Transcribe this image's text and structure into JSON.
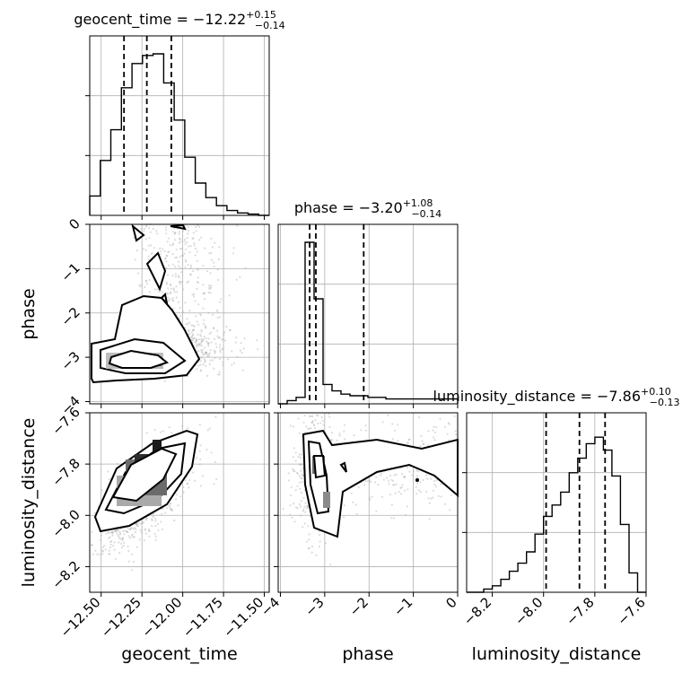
{
  "chart_data": {
    "type": "corner",
    "parameters": [
      {
        "name": "geocent_time",
        "label": "geocent_time",
        "range": [
          -12.57,
          -11.47
        ],
        "ticks": [
          -12.5,
          -12.25,
          -12.0,
          -11.75,
          -11.5
        ],
        "tick_labels": [
          "−12.50",
          "−12.25",
          "−12.00",
          "−11.75",
          "−11.50"
        ],
        "median": -12.22,
        "lower": -12.36,
        "upper": -12.07,
        "title_main": "geocent_time = −12.22",
        "title_sup": "+0.15",
        "title_sub": "−0.14",
        "hist": [
          0.12,
          0.34,
          0.53,
          0.79,
          0.94,
          0.99,
          1.0,
          0.82,
          0.59,
          0.36,
          0.2,
          0.11,
          0.06,
          0.03,
          0.015,
          0.008,
          0.0
        ]
      },
      {
        "name": "phase",
        "label": "phase",
        "range": [
          -4.05,
          0.0
        ],
        "ticks": [
          -4,
          -3,
          -2,
          -1,
          0
        ],
        "tick_labels": [
          "−4",
          "−3",
          "−2",
          "−1",
          "0"
        ],
        "median": -3.2,
        "lower": -3.34,
        "upper": -2.12,
        "title_main": "phase = −3.20",
        "title_sup": "+1.08",
        "title_sub": "−0.14",
        "hist": [
          0.0,
          0.02,
          0.04,
          1.0,
          0.65,
          0.12,
          0.08,
          0.06,
          0.05,
          0.05,
          0.04,
          0.04,
          0.03,
          0.03,
          0.03,
          0.03,
          0.03,
          0.03,
          0.03,
          0.03
        ]
      },
      {
        "name": "luminosity_distance",
        "label": "luminosity_distance",
        "range": [
          -8.3,
          -7.6
        ],
        "ticks": [
          -8.2,
          -8.0,
          -7.8,
          -7.6
        ],
        "tick_labels": [
          "−8.2",
          "−8.0",
          "−7.8",
          "−7.6"
        ],
        "median": -7.86,
        "lower": -7.99,
        "upper": -7.76,
        "title_main": "luminosity_distance = −7.86",
        "title_sup": "+0.10",
        "title_sub": "−0.13",
        "hist": [
          0.0,
          0.0,
          0.02,
          0.04,
          0.08,
          0.13,
          0.18,
          0.25,
          0.36,
          0.47,
          0.54,
          0.62,
          0.74,
          0.83,
          0.92,
          0.96,
          0.88,
          0.72,
          0.42,
          0.12,
          0.0
        ]
      }
    ],
    "xlabels": [
      "geocent_time",
      "phase",
      "luminosity_distance"
    ],
    "ylabels": [
      "phase",
      "luminosity_distance"
    ],
    "grid": true
  }
}
